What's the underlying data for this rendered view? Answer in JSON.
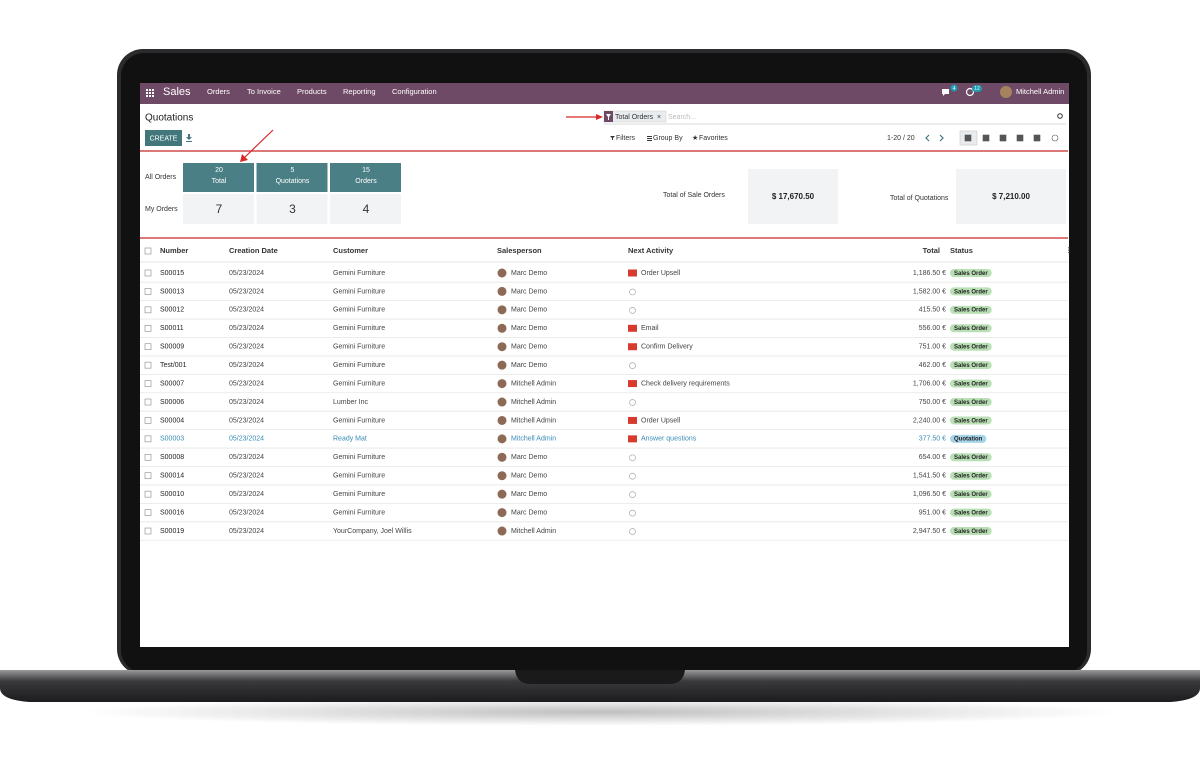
{
  "navbar": {
    "app": "Sales",
    "menu": [
      "Orders",
      "To Invoice",
      "Products",
      "Reporting",
      "Configuration"
    ],
    "chat_count": "4",
    "activity_count": "12",
    "user": "Mitchell Admin"
  },
  "control_panel": {
    "title": "Quotations",
    "create": "CREATE",
    "facet": "Total Orders",
    "search_placeholder": "Search...",
    "filters": "Filters",
    "group_by": "Group By",
    "favorites": "Favorites",
    "pager": "1-20 / 20"
  },
  "dashboard": {
    "row_labels": [
      "All Orders",
      "My Orders"
    ],
    "tiles": [
      {
        "count": "20",
        "label": "Total",
        "mine": "7"
      },
      {
        "count": "5",
        "label": "Quotations",
        "mine": "3"
      },
      {
        "count": "15",
        "label": "Orders",
        "mine": "4"
      }
    ],
    "kpis": [
      {
        "label": "Total of Sale Orders",
        "value": "$ 17,670.50"
      },
      {
        "label": "Total of Quotations",
        "value": "$ 7,210.00"
      }
    ]
  },
  "table": {
    "columns": [
      "Number",
      "Creation Date",
      "Customer",
      "Salesperson",
      "Next Activity",
      "Total",
      "Status"
    ],
    "rows": [
      {
        "number": "S00015",
        "date": "05/23/2024",
        "customer": "Gemini Furniture",
        "salesperson": "Marc Demo",
        "activity": "Order Upsell",
        "total": "1,186.50 €",
        "status": "Sales Order",
        "status_color": "#b9dfb4"
      },
      {
        "number": "S00013",
        "date": "05/23/2024",
        "customer": "Gemini Furniture",
        "salesperson": "Marc Demo",
        "activity": null,
        "total": "1,582.00 €",
        "status": "Sales Order",
        "status_color": "#b9dfb4"
      },
      {
        "number": "S00012",
        "date": "05/23/2024",
        "customer": "Gemini Furniture",
        "salesperson": "Marc Demo",
        "activity": null,
        "total": "415.50 €",
        "status": "Sales Order",
        "status_color": "#b9dfb4"
      },
      {
        "number": "S00011",
        "date": "05/23/2024",
        "customer": "Gemini Furniture",
        "salesperson": "Marc Demo",
        "activity": "Email",
        "total": "556.00 €",
        "status": "Sales Order",
        "status_color": "#b9dfb4"
      },
      {
        "number": "S00009",
        "date": "05/23/2024",
        "customer": "Gemini Furniture",
        "salesperson": "Marc Demo",
        "activity": "Confirm Delivery",
        "total": "751.00 €",
        "status": "Sales Order",
        "status_color": "#b9dfb4"
      },
      {
        "number": "Test/001",
        "date": "05/23/2024",
        "customer": "Gemini Furniture",
        "salesperson": "Marc Demo",
        "activity": null,
        "total": "462.00 €",
        "status": "Sales Order",
        "status_color": "#b9dfb4"
      },
      {
        "number": "S00007",
        "date": "05/23/2024",
        "customer": "Gemini Furniture",
        "salesperson": "Mitchell Admin",
        "activity": "Check delivery requirements",
        "total": "1,706.00 €",
        "status": "Sales Order",
        "status_color": "#b9dfb4"
      },
      {
        "number": "S00006",
        "date": "05/23/2024",
        "customer": "Lumber Inc",
        "salesperson": "Mitchell Admin",
        "activity": null,
        "total": "750.00 €",
        "status": "Sales Order",
        "status_color": "#b9dfb4"
      },
      {
        "number": "S00004",
        "date": "05/23/2024",
        "customer": "Gemini Furniture",
        "salesperson": "Mitchell Admin",
        "activity": "Order Upsell",
        "total": "2,240.00 €",
        "status": "Sales Order",
        "status_color": "#b9dfb4"
      },
      {
        "number": "S00003",
        "date": "05/23/2024",
        "customer": "Ready Mat",
        "salesperson": "Mitchell Admin",
        "activity": "Answer questions",
        "total": "377.50 €",
        "status": "Quotation",
        "status_color": "#a6d3e8",
        "highlighted": true
      },
      {
        "number": "S00008",
        "date": "05/23/2024",
        "customer": "Gemini Furniture",
        "salesperson": "Marc Demo",
        "activity": null,
        "total": "654.00 €",
        "status": "Sales Order",
        "status_color": "#b9dfb4"
      },
      {
        "number": "S00014",
        "date": "05/23/2024",
        "customer": "Gemini Furniture",
        "salesperson": "Marc Demo",
        "activity": null,
        "total": "1,541.50 €",
        "status": "Sales Order",
        "status_color": "#b9dfb4"
      },
      {
        "number": "S00010",
        "date": "05/23/2024",
        "customer": "Gemini Furniture",
        "salesperson": "Marc Demo",
        "activity": null,
        "total": "1,096.50 €",
        "status": "Sales Order",
        "status_color": "#b9dfb4"
      },
      {
        "number": "S00016",
        "date": "05/23/2024",
        "customer": "Gemini Furniture",
        "salesperson": "Marc Demo",
        "activity": null,
        "total": "951.00 €",
        "status": "Sales Order",
        "status_color": "#b9dfb4"
      },
      {
        "number": "S00019",
        "date": "05/23/2024",
        "customer": "YourCompany, Joel Willis",
        "salesperson": "Mitchell Admin",
        "activity": null,
        "total": "2,947.50 €",
        "status": "Sales Order",
        "status_color": "#b9dfb4"
      }
    ]
  }
}
